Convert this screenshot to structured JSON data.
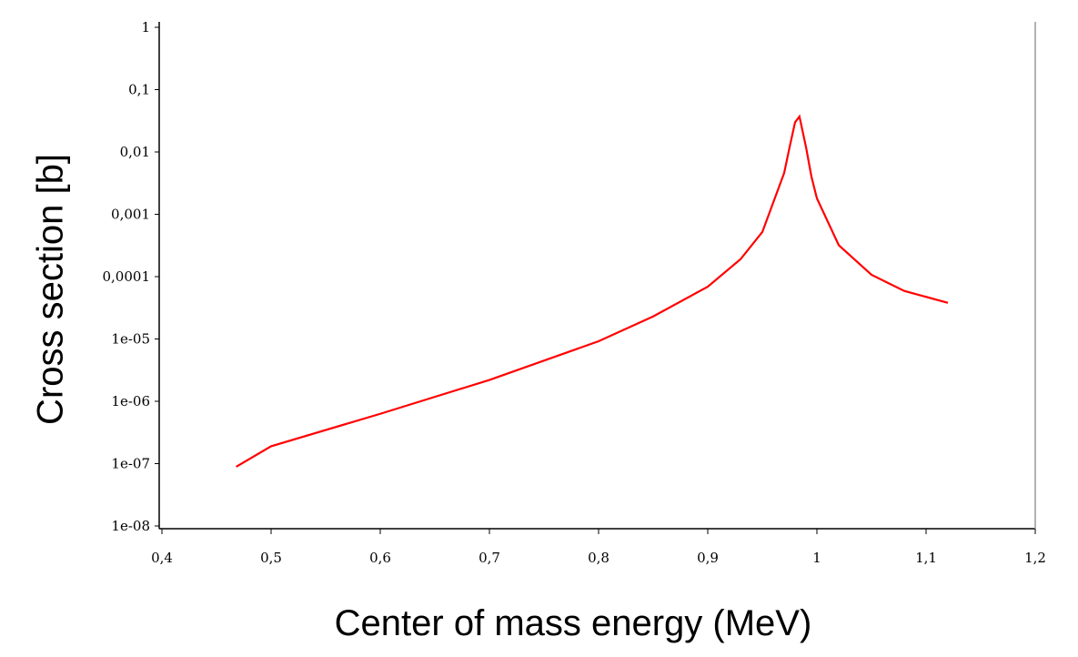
{
  "chart_data": {
    "type": "line",
    "x_label": "Center of mass energy (MeV)",
    "y_label": "Cross section [b]",
    "log_y": true,
    "xlim": [
      0.4,
      1.2
    ],
    "xticks": [
      {
        "value": 0.4,
        "label": "0,4"
      },
      {
        "value": 0.5,
        "label": "0,5"
      },
      {
        "value": 0.6,
        "label": "0,6"
      },
      {
        "value": 0.7,
        "label": "0,7"
      },
      {
        "value": 0.8,
        "label": "0,8"
      },
      {
        "value": 0.9,
        "label": "0,9"
      },
      1,
      {
        "value": 1.1,
        "label": "1,1"
      },
      {
        "value": 1.2,
        "label": "1,2"
      }
    ],
    "ylim": [
      1e-08,
      1
    ],
    "yticks": [
      {
        "value": 1e-08,
        "label": "1e-08"
      },
      {
        "value": 1e-07,
        "label": "1e-07"
      },
      {
        "value": 1e-06,
        "label": "1e-06"
      },
      {
        "value": 1e-05,
        "label": "1e-05"
      },
      {
        "value": 0.0001,
        "label": "0,0001"
      },
      {
        "value": 0.001,
        "label": "0,001"
      },
      {
        "value": 0.01,
        "label": "0,01"
      },
      {
        "value": 0.1,
        "label": "0,1"
      },
      1
    ],
    "x": [
      0.468,
      0.5,
      0.6,
      0.7,
      0.8,
      0.85,
      0.9,
      0.93,
      0.95,
      0.97,
      0.975,
      0.98,
      0.984,
      0.99,
      0.995,
      1.0,
      1.02,
      1.05,
      1.08,
      1.12
    ],
    "series": [
      {
        "color": "#ff0000",
        "values": [
          8.9e-08,
          1.9e-07,
          6.3e-07,
          2.2e-06,
          9.2e-06,
          2.3e-05,
          6.9e-05,
          0.00019,
          0.00052,
          0.0046,
          0.012,
          0.03,
          0.037,
          0.012,
          0.004,
          0.0018,
          0.00032,
          0.000107,
          5.9e-05,
          3.8e-05
        ]
      }
    ]
  }
}
